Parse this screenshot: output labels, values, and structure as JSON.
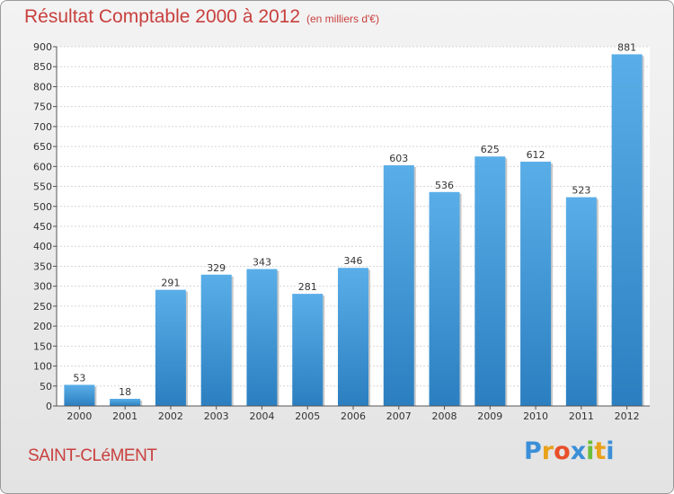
{
  "chart_data": {
    "type": "bar",
    "title": "Résultat Comptable 2000 à 2012",
    "subtitle": "(en milliers d'€)",
    "categories": [
      "2000",
      "2001",
      "2002",
      "2003",
      "2004",
      "2005",
      "2006",
      "2007",
      "2008",
      "2009",
      "2010",
      "2011",
      "2012"
    ],
    "values": [
      53,
      18,
      291,
      329,
      343,
      281,
      346,
      603,
      536,
      625,
      612,
      523,
      881
    ],
    "ylim": [
      0,
      900
    ],
    "yticks": [
      0,
      50,
      100,
      150,
      200,
      250,
      300,
      350,
      400,
      450,
      500,
      550,
      600,
      650,
      700,
      750,
      800,
      850,
      900
    ],
    "grid": true,
    "xlabel": "",
    "ylabel": ""
  },
  "footer": {
    "town": "SAINT-CLéMENT",
    "brand": "Proxiti",
    "brand_letters": [
      {
        "ch": "P",
        "color": "#3a8fd8"
      },
      {
        "ch": "r",
        "color": "#e8a21a"
      },
      {
        "ch": "o",
        "color": "#e84f2a"
      },
      {
        "ch": "x",
        "color": "#3a8fd8"
      },
      {
        "ch": "i",
        "color": "#6cbf3a"
      },
      {
        "ch": "t",
        "color": "#e8a21a"
      },
      {
        "ch": "i",
        "color": "#3a8fd8"
      }
    ]
  },
  "colors": {
    "title": "#c8403e",
    "bar_light": "#5aaee8",
    "bar_dark": "#2b7fc0"
  }
}
